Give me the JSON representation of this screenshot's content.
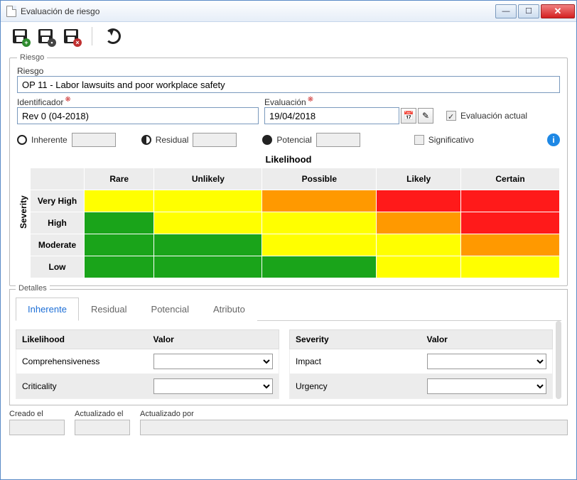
{
  "window": {
    "title": "Evaluación de riesgo"
  },
  "toolbar": {
    "save_new": "save-new",
    "save": "save",
    "save_delete": "save-delete",
    "refresh": "refresh"
  },
  "riesgo_group": {
    "legend": "Riesgo",
    "riesgo_label": "Riesgo",
    "riesgo_value": "OP 11 - Labor lawsuits and poor workplace safety",
    "ident_label": "Identificador",
    "ident_value": "Rev 0 (04-2018)",
    "eval_label": "Evaluación",
    "eval_value": "19/04/2018",
    "eval_actual_label": "Evaluación actual",
    "types": {
      "inherente": "Inherente",
      "residual": "Residual",
      "potencial": "Potencial",
      "significativo": "Significativo"
    }
  },
  "matrix": {
    "likelihood_title": "Likelihood",
    "severity_title": "Severity",
    "cols": [
      "Rare",
      "Unlikely",
      "Possible",
      "Likely",
      "Certain"
    ],
    "rows": [
      "Very High",
      "High",
      "Moderate",
      "Low"
    ],
    "colors": {
      "green": "#1aa41a",
      "yellow": "#ffff00",
      "orange": "#ff9900",
      "red": "#ff1a1a"
    },
    "grid": [
      [
        "yellow",
        "yellow",
        "orange",
        "red",
        "red"
      ],
      [
        "green",
        "yellow",
        "yellow",
        "orange",
        "red"
      ],
      [
        "green",
        "green",
        "yellow",
        "yellow",
        "orange"
      ],
      [
        "green",
        "green",
        "green",
        "yellow",
        "yellow"
      ]
    ]
  },
  "details": {
    "legend": "Detalles",
    "tabs": [
      "Inherente",
      "Residual",
      "Potencial",
      "Atributo"
    ],
    "active_tab": 0,
    "left": {
      "head1": "Likelihood",
      "head2": "Valor",
      "rows": [
        "Comprehensiveness",
        "Criticality"
      ]
    },
    "right": {
      "head1": "Severity",
      "head2": "Valor",
      "rows": [
        "Impact",
        "Urgency"
      ]
    }
  },
  "footer": {
    "creado": "Creado el",
    "actualizado": "Actualizado el",
    "actualizado_por": "Actualizado por"
  }
}
